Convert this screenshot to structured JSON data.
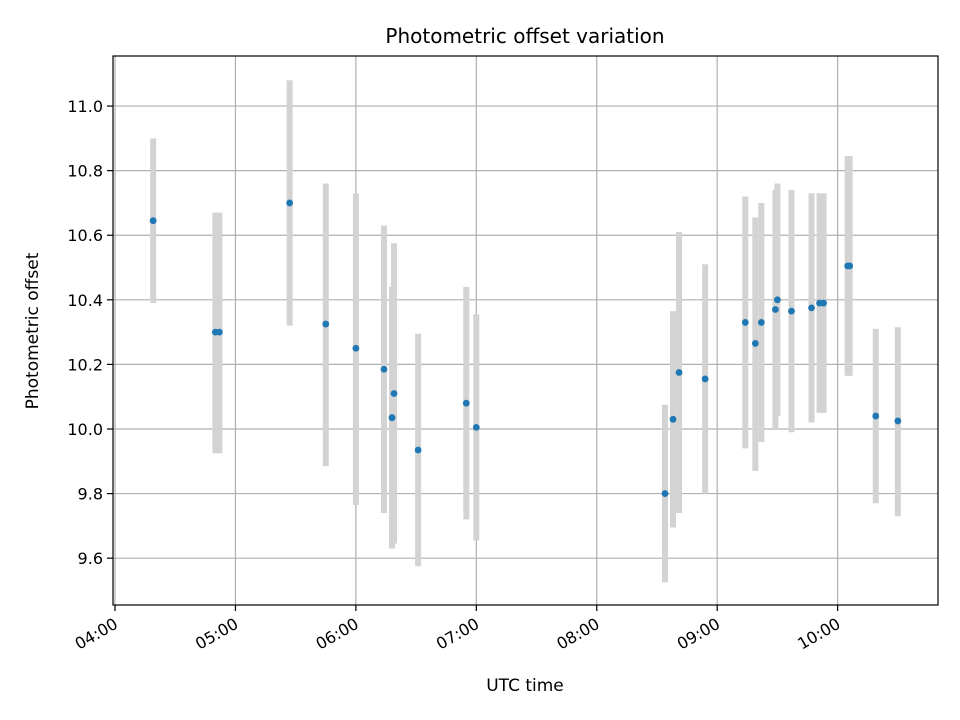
{
  "chart_data": {
    "type": "scatter",
    "title": "Photometric offset variation",
    "xlabel": "UTC time",
    "ylabel": "Photometric offset",
    "x_unit": "UTC time (HH:MM)",
    "xlim": [
      "03:59",
      "10:50"
    ],
    "ylim": [
      9.455,
      11.155
    ],
    "x_ticks": [
      "04:00",
      "05:00",
      "06:00",
      "07:00",
      "08:00",
      "09:00",
      "10:00"
    ],
    "y_ticks": [
      9.6,
      9.8,
      10.0,
      10.2,
      10.4,
      10.6,
      10.8,
      11.0
    ],
    "y_tick_labels": [
      "9.6",
      "9.8",
      "10.0",
      "10.2",
      "10.4",
      "10.6",
      "10.8",
      "11.0"
    ],
    "grid": true,
    "x_tick_rotation": "30 degrees",
    "colors": {
      "marker": "#1f77b4",
      "error_bar": "#d3d3d3",
      "grid": "#b0b0b0",
      "axes": "#000000"
    },
    "series": [
      {
        "points": [
          {
            "x": "04:19",
            "y": 10.645,
            "ylow": 10.39,
            "yhigh": 10.9
          },
          {
            "x": "04:50",
            "y": 10.3,
            "ylow": 9.925,
            "yhigh": 10.67
          },
          {
            "x": "04:52",
            "y": 10.3,
            "ylow": 9.925,
            "yhigh": 10.67
          },
          {
            "x": "05:27",
            "y": 10.7,
            "ylow": 10.32,
            "yhigh": 11.08
          },
          {
            "x": "05:45",
            "y": 10.325,
            "ylow": 9.885,
            "yhigh": 10.76
          },
          {
            "x": "06:00",
            "y": 10.25,
            "ylow": 9.765,
            "yhigh": 10.73
          },
          {
            "x": "06:14",
            "y": 10.185,
            "ylow": 9.74,
            "yhigh": 10.63
          },
          {
            "x": "06:18",
            "y": 10.035,
            "ylow": 9.63,
            "yhigh": 10.44
          },
          {
            "x": "06:19",
            "y": 10.11,
            "ylow": 9.645,
            "yhigh": 10.575
          },
          {
            "x": "06:31",
            "y": 9.935,
            "ylow": 9.575,
            "yhigh": 10.295
          },
          {
            "x": "06:55",
            "y": 10.08,
            "ylow": 9.72,
            "yhigh": 10.44
          },
          {
            "x": "07:00",
            "y": 10.005,
            "ylow": 9.655,
            "yhigh": 10.355
          },
          {
            "x": "08:34",
            "y": 9.8,
            "ylow": 9.525,
            "yhigh": 10.075
          },
          {
            "x": "08:38",
            "y": 10.03,
            "ylow": 9.695,
            "yhigh": 10.365
          },
          {
            "x": "08:41",
            "y": 10.175,
            "ylow": 9.74,
            "yhigh": 10.61
          },
          {
            "x": "08:54",
            "y": 10.155,
            "ylow": 9.8,
            "yhigh": 10.51
          },
          {
            "x": "09:14",
            "y": 10.33,
            "ylow": 9.94,
            "yhigh": 10.72
          },
          {
            "x": "09:19",
            "y": 10.265,
            "ylow": 9.87,
            "yhigh": 10.655
          },
          {
            "x": "09:22",
            "y": 10.33,
            "ylow": 9.96,
            "yhigh": 10.7
          },
          {
            "x": "09:29",
            "y": 10.37,
            "ylow": 10.0,
            "yhigh": 10.74
          },
          {
            "x": "09:30",
            "y": 10.4,
            "ylow": 10.04,
            "yhigh": 10.76
          },
          {
            "x": "09:37",
            "y": 10.365,
            "ylow": 9.99,
            "yhigh": 10.74
          },
          {
            "x": "09:47",
            "y": 10.375,
            "ylow": 10.02,
            "yhigh": 10.73
          },
          {
            "x": "09:51",
            "y": 10.39,
            "ylow": 10.05,
            "yhigh": 10.73
          },
          {
            "x": "09:53",
            "y": 10.39,
            "ylow": 10.05,
            "yhigh": 10.73
          },
          {
            "x": "10:05",
            "y": 10.505,
            "ylow": 10.165,
            "yhigh": 10.845
          },
          {
            "x": "10:06",
            "y": 10.505,
            "ylow": 10.165,
            "yhigh": 10.845
          },
          {
            "x": "10:19",
            "y": 10.04,
            "ylow": 9.77,
            "yhigh": 10.31
          },
          {
            "x": "10:30",
            "y": 10.025,
            "ylow": 9.73,
            "yhigh": 10.315
          }
        ]
      }
    ]
  }
}
